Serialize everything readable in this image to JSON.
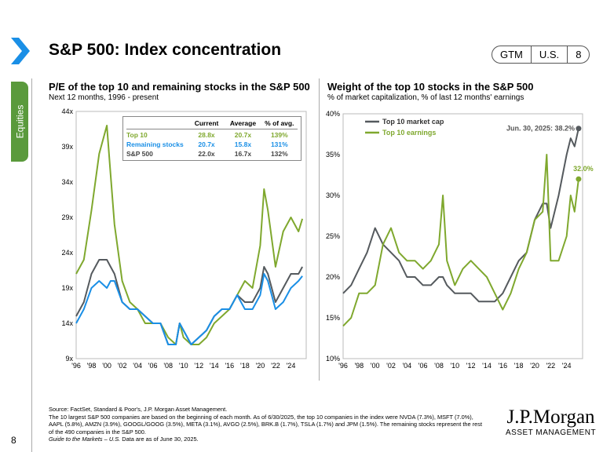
{
  "header": {
    "title": "S&P 500: Index concentration",
    "section": "Equities",
    "badges": [
      "GTM",
      "U.S.",
      "8"
    ]
  },
  "colors": {
    "green": "#7fa82e",
    "blue": "#1a8fe6",
    "gray": "#555a5e",
    "accent": "#1a8fe6",
    "tab": "#5a9a3c"
  },
  "chart_data": [
    {
      "type": "line",
      "title": "P/E of the top 10 and remaining stocks in the S&P 500",
      "subtitle": "Next 12 months, 1996 - present",
      "ylim": [
        9,
        44
      ],
      "yticks": [
        "9x",
        "14x",
        "19x",
        "24x",
        "29x",
        "34x",
        "39x",
        "44x"
      ],
      "xticks": [
        "'96",
        "'98",
        "'00",
        "'02",
        "'04",
        "'06",
        "'08",
        "'10",
        "'12",
        "'14",
        "'16",
        "'18",
        "'20",
        "'22",
        "'24"
      ],
      "xlim": [
        1996,
        2026
      ],
      "table": {
        "headers": [
          "",
          "Current",
          "Average",
          "% of avg."
        ],
        "rows": [
          [
            "Top 10",
            "28.8x",
            "20.7x",
            "139%"
          ],
          [
            "Remaining stocks",
            "20.7x",
            "15.8x",
            "131%"
          ],
          [
            "S&P 500",
            "22.0x",
            "16.7x",
            "132%"
          ]
        ]
      },
      "x": [
        1996,
        1997,
        1998,
        1999,
        2000,
        2000.5,
        2001,
        2002,
        2003,
        2004,
        2005,
        2006,
        2007,
        2008,
        2009,
        2009.5,
        2010,
        2011,
        2012,
        2013,
        2014,
        2015,
        2016,
        2017,
        2018,
        2019,
        2020,
        2020.5,
        2021,
        2022,
        2023,
        2024,
        2025,
        2025.5
      ],
      "series": [
        {
          "name": "Top 10",
          "color": "#7fa82e",
          "values": [
            21,
            23,
            30,
            38,
            42,
            35,
            28,
            20,
            17,
            16,
            14,
            14,
            14,
            12,
            11,
            14,
            12,
            11,
            11,
            12,
            14,
            15,
            16,
            18,
            20,
            19,
            25,
            33,
            30,
            22,
            27,
            29,
            27,
            28.8
          ]
        },
        {
          "name": "S&P 500",
          "color": "#555a5e",
          "values": [
            15,
            17,
            21,
            23,
            23,
            22,
            21,
            17,
            16,
            16,
            15,
            14,
            14,
            11,
            11,
            14,
            13,
            11,
            12,
            13,
            15,
            16,
            16,
            18,
            17,
            17,
            19,
            22,
            21,
            17,
            19,
            21,
            21,
            22.0
          ]
        },
        {
          "name": "Remaining stocks",
          "color": "#1a8fe6",
          "values": [
            14,
            16,
            19,
            20,
            19,
            20,
            20,
            17,
            16,
            16,
            15,
            14,
            14,
            11,
            11,
            14,
            13,
            11,
            12,
            13,
            15,
            16,
            16,
            18,
            16,
            16,
            18,
            21,
            20,
            16,
            17,
            19,
            20,
            20.7
          ]
        }
      ]
    },
    {
      "type": "line",
      "title": "Weight of the top 10 stocks in the S&P 500",
      "subtitle": "% of market capitalization, % of last 12 months' earnings",
      "ylim": [
        10,
        40
      ],
      "yticks": [
        "10%",
        "15%",
        "20%",
        "25%",
        "30%",
        "35%",
        "40%"
      ],
      "xticks": [
        "'96",
        "'98",
        "'00",
        "'02",
        "'04",
        "'06",
        "'08",
        "'10",
        "'12",
        "'14",
        "'16",
        "'18",
        "'20",
        "'22",
        "'24"
      ],
      "xlim": [
        1996,
        2026
      ],
      "annotations": [
        "Jun. 30, 2025: 38.2%",
        "32.0%"
      ],
      "x": [
        1996,
        1997,
        1998,
        1999,
        2000,
        2001,
        2002,
        2003,
        2004,
        2005,
        2006,
        2007,
        2008,
        2008.5,
        2009,
        2010,
        2011,
        2012,
        2013,
        2014,
        2015,
        2016,
        2017,
        2018,
        2019,
        2020,
        2021,
        2021.5,
        2022,
        2023,
        2024,
        2024.5,
        2025,
        2025.5
      ],
      "series": [
        {
          "name": "Top 10 market cap",
          "color": "#555a5e",
          "values": [
            18,
            19,
            21,
            23,
            26,
            24,
            23,
            22,
            20,
            20,
            19,
            19,
            20,
            20,
            19,
            18,
            18,
            18,
            17,
            17,
            17,
            18,
            20,
            22,
            23,
            27,
            29,
            29,
            26,
            30,
            35,
            37,
            36,
            38.2
          ]
        },
        {
          "name": "Top 10 earnings",
          "color": "#7fa82e",
          "values": [
            14,
            15,
            18,
            18,
            19,
            24,
            26,
            23,
            22,
            22,
            21,
            22,
            24,
            30,
            22,
            19,
            21,
            22,
            21,
            20,
            18,
            16,
            18,
            21,
            23,
            27,
            28,
            35,
            22,
            22,
            25,
            30,
            28,
            32.0
          ]
        }
      ]
    }
  ],
  "footer": {
    "source": "Source: FactSet, Standard & Poor's, J.P. Morgan Asset Management.",
    "note": "The 10 largest S&P 500 companies are based on the beginning of each month. As of 6/30/2025, the top 10 companies in the index were NVDA (7.3%), MSFT (7.0%), AAPL (5.8%), AMZN (3.9%), GOOGL/GOOG (3.5%), META (3.1%), AVGO (2.5%), BRK.B (1.7%), TSLA (1.7%) and JPM (1.5%). The remaining stocks represent the rest of the 490 companies in the S&P 500.",
    "gtm": "Guide to the Markets – U.S.",
    "asof": " Data are as of June 30, 2025.",
    "page": "8",
    "logo": "J.P.Morgan",
    "logo_sub": "ASSET MANAGEMENT"
  }
}
